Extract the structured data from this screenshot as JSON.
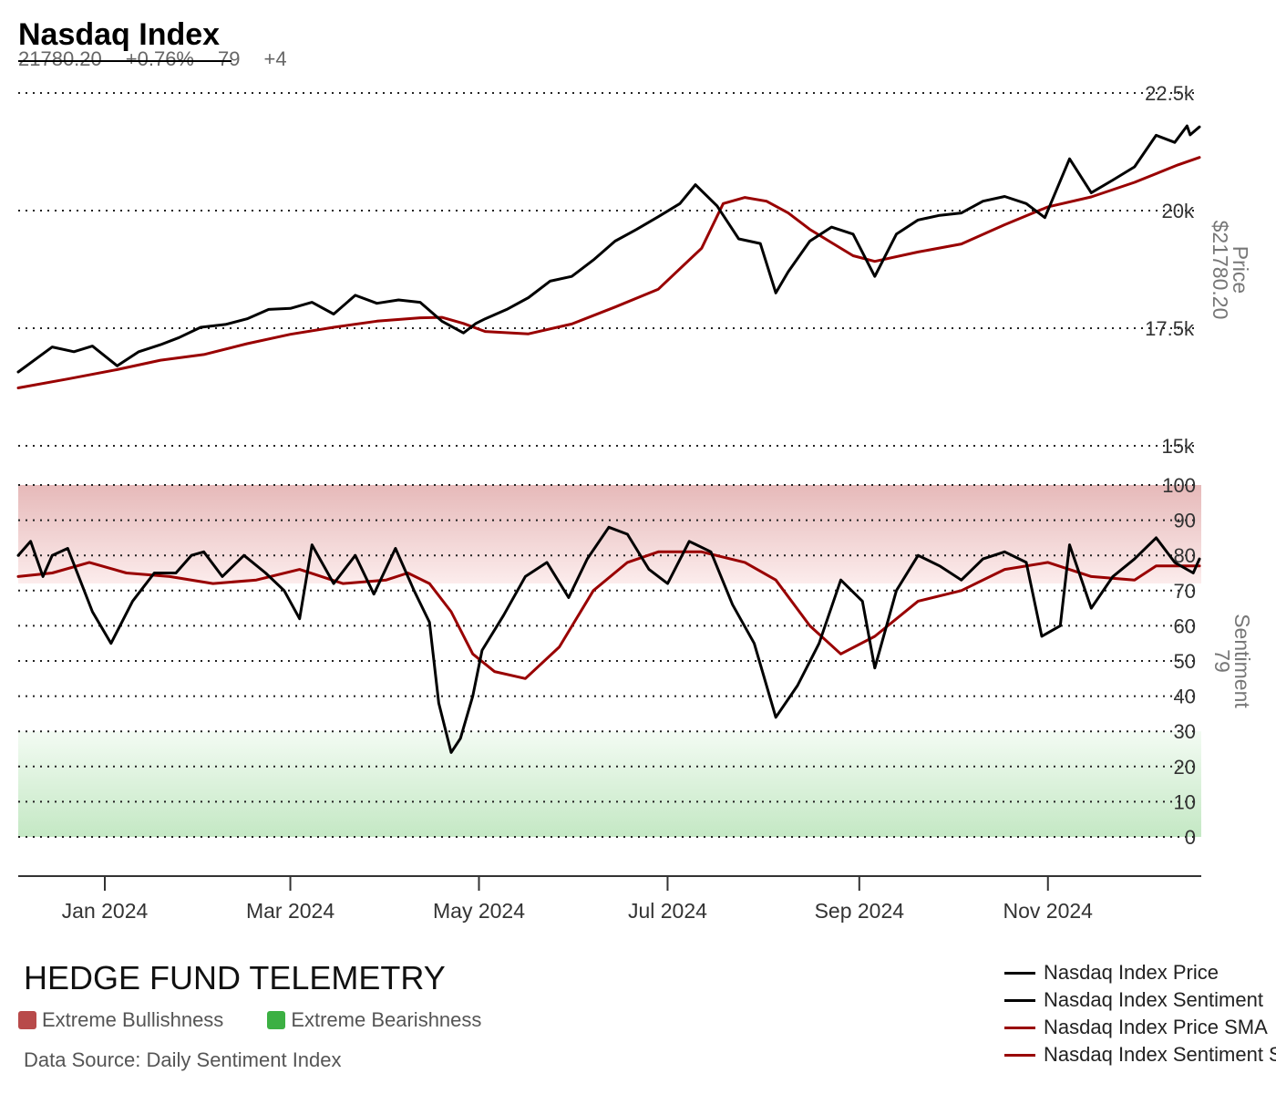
{
  "header": {
    "title": "Nasdaq Index",
    "price": "21780.20",
    "change": "+0.76%",
    "sentiment": "79",
    "sentiment_change": "+4"
  },
  "brand": "HEDGE FUND TELEMETRY",
  "zones": {
    "bull_label": "Extreme Bullishness",
    "bull_color": "#b84a4a",
    "bear_label": "Extreme Bearishness",
    "bear_color": "#3cb043"
  },
  "source": "Data Source: Daily Sentiment Index",
  "legend": [
    {
      "label": "Nasdaq Index Price",
      "color": "#000000"
    },
    {
      "label": "Nasdaq Index Sentiment",
      "color": "#000000"
    },
    {
      "label": "Nasdaq Index Price SMA",
      "color": "#990000"
    },
    {
      "label": "Nasdaq Index Sentiment SMA",
      "color": "#990000"
    }
  ],
  "chart_data": [
    {
      "type": "line",
      "title": "Price",
      "ylabel": "Price",
      "last_value_label": "$21780.20",
      "ylim": [
        15000,
        22500
      ],
      "yticks": [
        15000,
        17500,
        20000,
        22500
      ],
      "ytick_labels": [
        "15k",
        "17.5k",
        "20k",
        "22.5k"
      ],
      "xlim": [
        "2023-12-04",
        "2024-12-20"
      ],
      "xticks": [
        "2024-01-01",
        "2024-03-01",
        "2024-05-01",
        "2024-07-01",
        "2024-09-01",
        "2024-11-01"
      ],
      "xtick_labels": [
        "Jan 2024",
        "Mar 2024",
        "May 2024",
        "Jul 2024",
        "Sep 2024",
        "Nov 2024"
      ],
      "grid": true,
      "series": [
        {
          "name": "Nasdaq Index Price",
          "color": "#000000",
          "points": [
            [
              "2023-12-04",
              16570
            ],
            [
              "2023-12-15",
              17100
            ],
            [
              "2023-12-22",
              17000
            ],
            [
              "2023-12-28",
              17120
            ],
            [
              "2024-01-05",
              16700
            ],
            [
              "2024-01-12",
              17000
            ],
            [
              "2024-01-19",
              17150
            ],
            [
              "2024-01-25",
              17300
            ],
            [
              "2024-02-01",
              17520
            ],
            [
              "2024-02-09",
              17580
            ],
            [
              "2024-02-16",
              17700
            ],
            [
              "2024-02-23",
              17900
            ],
            [
              "2024-03-01",
              17920
            ],
            [
              "2024-03-08",
              18050
            ],
            [
              "2024-03-15",
              17800
            ],
            [
              "2024-03-22",
              18200
            ],
            [
              "2024-03-29",
              18030
            ],
            [
              "2024-04-05",
              18100
            ],
            [
              "2024-04-12",
              18050
            ],
            [
              "2024-04-19",
              17650
            ],
            [
              "2024-04-26",
              17400
            ],
            [
              "2024-04-30",
              17600
            ],
            [
              "2024-05-03",
              17700
            ],
            [
              "2024-05-10",
              17900
            ],
            [
              "2024-05-17",
              18150
            ],
            [
              "2024-05-24",
              18500
            ],
            [
              "2024-05-31",
              18600
            ],
            [
              "2024-06-07",
              18950
            ],
            [
              "2024-06-14",
              19350
            ],
            [
              "2024-06-21",
              19600
            ],
            [
              "2024-06-28",
              19870
            ],
            [
              "2024-07-05",
              20150
            ],
            [
              "2024-07-10",
              20550
            ],
            [
              "2024-07-17",
              20100
            ],
            [
              "2024-07-24",
              19400
            ],
            [
              "2024-07-31",
              19300
            ],
            [
              "2024-08-05",
              18250
            ],
            [
              "2024-08-09",
              18700
            ],
            [
              "2024-08-16",
              19350
            ],
            [
              "2024-08-23",
              19650
            ],
            [
              "2024-08-30",
              19500
            ],
            [
              "2024-09-06",
              18600
            ],
            [
              "2024-09-13",
              19500
            ],
            [
              "2024-09-20",
              19800
            ],
            [
              "2024-09-27",
              19900
            ],
            [
              "2024-10-04",
              19950
            ],
            [
              "2024-10-11",
              20200
            ],
            [
              "2024-10-18",
              20300
            ],
            [
              "2024-10-25",
              20150
            ],
            [
              "2024-10-31",
              19850
            ],
            [
              "2024-11-08",
              21100
            ],
            [
              "2024-11-15",
              20380
            ],
            [
              "2024-11-22",
              20650
            ],
            [
              "2024-11-29",
              20930
            ],
            [
              "2024-12-06",
              21600
            ],
            [
              "2024-12-12",
              21450
            ],
            [
              "2024-12-16",
              21800
            ],
            [
              "2024-12-17",
              21610
            ],
            [
              "2024-12-20",
              21780
            ]
          ]
        },
        {
          "name": "Nasdaq Index Price SMA",
          "color": "#990000",
          "points": [
            [
              "2023-12-04",
              16230
            ],
            [
              "2023-12-20",
              16420
            ],
            [
              "2024-01-05",
              16620
            ],
            [
              "2024-01-19",
              16820
            ],
            [
              "2024-02-02",
              16940
            ],
            [
              "2024-02-16",
              17170
            ],
            [
              "2024-03-01",
              17370
            ],
            [
              "2024-03-15",
              17520
            ],
            [
              "2024-03-29",
              17650
            ],
            [
              "2024-04-12",
              17720
            ],
            [
              "2024-04-19",
              17730
            ],
            [
              "2024-04-26",
              17600
            ],
            [
              "2024-05-03",
              17430
            ],
            [
              "2024-05-17",
              17380
            ],
            [
              "2024-05-31",
              17590
            ],
            [
              "2024-06-14",
              17950
            ],
            [
              "2024-06-28",
              18330
            ],
            [
              "2024-07-12",
              19200
            ],
            [
              "2024-07-19",
              20150
            ],
            [
              "2024-07-26",
              20280
            ],
            [
              "2024-08-02",
              20200
            ],
            [
              "2024-08-09",
              19950
            ],
            [
              "2024-08-16",
              19600
            ],
            [
              "2024-08-23",
              19320
            ],
            [
              "2024-08-30",
              19040
            ],
            [
              "2024-09-06",
              18920
            ],
            [
              "2024-09-20",
              19120
            ],
            [
              "2024-10-04",
              19290
            ],
            [
              "2024-10-18",
              19700
            ],
            [
              "2024-11-01",
              20080
            ],
            [
              "2024-11-15",
              20290
            ],
            [
              "2024-11-29",
              20600
            ],
            [
              "2024-12-13",
              20970
            ],
            [
              "2024-12-20",
              21130
            ]
          ]
        }
      ]
    },
    {
      "type": "line",
      "title": "Sentiment",
      "ylabel": "Sentiment",
      "last_value_label": "79",
      "ylim": [
        0,
        100
      ],
      "yticks": [
        0,
        10,
        20,
        30,
        40,
        50,
        60,
        70,
        80,
        90,
        100
      ],
      "bands": [
        {
          "from": 72,
          "to": 100,
          "zone": "Extreme Bullishness"
        },
        {
          "from": 0,
          "to": 30,
          "zone": "Extreme Bearishness"
        }
      ],
      "grid": true,
      "series": [
        {
          "name": "Nasdaq Index Sentiment",
          "color": "#000000",
          "points": [
            [
              "2023-12-04",
              80
            ],
            [
              "2023-12-08",
              84
            ],
            [
              "2023-12-12",
              74
            ],
            [
              "2023-12-15",
              80
            ],
            [
              "2023-12-20",
              82
            ],
            [
              "2023-12-28",
              64
            ],
            [
              "2024-01-03",
              55
            ],
            [
              "2024-01-10",
              67
            ],
            [
              "2024-01-17",
              75
            ],
            [
              "2024-01-24",
              75
            ],
            [
              "2024-01-29",
              80
            ],
            [
              "2024-02-02",
              81
            ],
            [
              "2024-02-08",
              74
            ],
            [
              "2024-02-15",
              80
            ],
            [
              "2024-02-22",
              75
            ],
            [
              "2024-02-28",
              70
            ],
            [
              "2024-03-04",
              62
            ],
            [
              "2024-03-08",
              83
            ],
            [
              "2024-03-15",
              72
            ],
            [
              "2024-03-22",
              80
            ],
            [
              "2024-03-28",
              69
            ],
            [
              "2024-04-04",
              82
            ],
            [
              "2024-04-10",
              70
            ],
            [
              "2024-04-15",
              61
            ],
            [
              "2024-04-18",
              38
            ],
            [
              "2024-04-22",
              24
            ],
            [
              "2024-04-25",
              28
            ],
            [
              "2024-04-29",
              40
            ],
            [
              "2024-05-02",
              53
            ],
            [
              "2024-05-09",
              63
            ],
            [
              "2024-05-16",
              74
            ],
            [
              "2024-05-23",
              78
            ],
            [
              "2024-05-30",
              68
            ],
            [
              "2024-06-05",
              79
            ],
            [
              "2024-06-12",
              88
            ],
            [
              "2024-06-18",
              86
            ],
            [
              "2024-06-25",
              76
            ],
            [
              "2024-07-01",
              72
            ],
            [
              "2024-07-08",
              84
            ],
            [
              "2024-07-15",
              81
            ],
            [
              "2024-07-22",
              66
            ],
            [
              "2024-07-29",
              55
            ],
            [
              "2024-08-05",
              34
            ],
            [
              "2024-08-12",
              43
            ],
            [
              "2024-08-19",
              55
            ],
            [
              "2024-08-26",
              73
            ],
            [
              "2024-09-02",
              67
            ],
            [
              "2024-09-06",
              48
            ],
            [
              "2024-09-13",
              70
            ],
            [
              "2024-09-20",
              80
            ],
            [
              "2024-09-27",
              77
            ],
            [
              "2024-10-04",
              73
            ],
            [
              "2024-10-11",
              79
            ],
            [
              "2024-10-18",
              81
            ],
            [
              "2024-10-25",
              78
            ],
            [
              "2024-10-30",
              57
            ],
            [
              "2024-11-05",
              60
            ],
            [
              "2024-11-08",
              83
            ],
            [
              "2024-11-15",
              65
            ],
            [
              "2024-11-22",
              74
            ],
            [
              "2024-11-29",
              79
            ],
            [
              "2024-12-06",
              85
            ],
            [
              "2024-12-12",
              78
            ],
            [
              "2024-12-18",
              75
            ],
            [
              "2024-12-20",
              79
            ]
          ]
        },
        {
          "name": "Nasdaq Index Sentiment SMA",
          "color": "#990000",
          "points": [
            [
              "2023-12-04",
              74
            ],
            [
              "2023-12-15",
              75
            ],
            [
              "2023-12-27",
              78
            ],
            [
              "2024-01-08",
              75
            ],
            [
              "2024-01-22",
              74
            ],
            [
              "2024-02-05",
              72
            ],
            [
              "2024-02-19",
              73
            ],
            [
              "2024-03-04",
              76
            ],
            [
              "2024-03-18",
              72
            ],
            [
              "2024-04-01",
              73
            ],
            [
              "2024-04-08",
              75
            ],
            [
              "2024-04-15",
              72
            ],
            [
              "2024-04-22",
              64
            ],
            [
              "2024-04-29",
              52
            ],
            [
              "2024-05-06",
              47
            ],
            [
              "2024-05-16",
              45
            ],
            [
              "2024-05-27",
              54
            ],
            [
              "2024-06-07",
              70
            ],
            [
              "2024-06-18",
              78
            ],
            [
              "2024-06-28",
              81
            ],
            [
              "2024-07-12",
              81
            ],
            [
              "2024-07-26",
              78
            ],
            [
              "2024-08-05",
              73
            ],
            [
              "2024-08-16",
              60
            ],
            [
              "2024-08-26",
              52
            ],
            [
              "2024-09-06",
              57
            ],
            [
              "2024-09-20",
              67
            ],
            [
              "2024-10-04",
              70
            ],
            [
              "2024-10-18",
              76
            ],
            [
              "2024-11-01",
              78
            ],
            [
              "2024-11-15",
              74
            ],
            [
              "2024-11-29",
              73
            ],
            [
              "2024-12-06",
              77
            ],
            [
              "2024-12-20",
              77
            ]
          ]
        }
      ]
    }
  ]
}
